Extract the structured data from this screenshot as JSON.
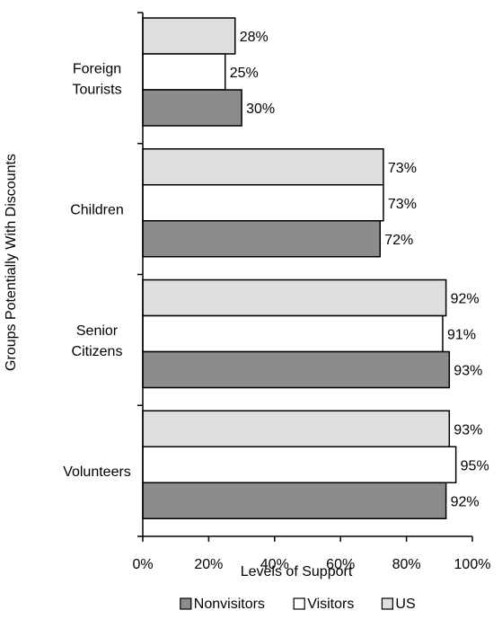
{
  "chart_data": {
    "type": "bar",
    "orientation": "horizontal",
    "title": "",
    "xlabel": "Levels of Support",
    "ylabel": "Groups Potentially With Discounts",
    "xlim": [
      0,
      100
    ],
    "x_ticks": [
      "0%",
      "20%",
      "40%",
      "60%",
      "80%",
      "100%"
    ],
    "x_tick_values": [
      0,
      20,
      40,
      60,
      80,
      100
    ],
    "categories": [
      [
        "Foreign",
        "Tourists"
      ],
      [
        "Children"
      ],
      [
        "Senior",
        "Citizens"
      ],
      [
        "Volunteers"
      ]
    ],
    "series": [
      {
        "name": "US",
        "color": "#dedede",
        "values": [
          28,
          73,
          92,
          93
        ],
        "labels": [
          "28%",
          "73%",
          "92%",
          "93%"
        ]
      },
      {
        "name": "Visitors",
        "color": "#ffffff",
        "values": [
          25,
          73,
          91,
          95
        ],
        "labels": [
          "25%",
          "73%",
          "91%",
          "95%"
        ]
      },
      {
        "name": "Nonvisitors",
        "color": "#8c8c8c",
        "values": [
          30,
          72,
          93,
          92
        ],
        "labels": [
          "30%",
          "72%",
          "93%",
          "92%"
        ]
      }
    ],
    "legend": {
      "position": "bottom",
      "order": [
        "Nonvisitors",
        "Visitors",
        "US"
      ]
    },
    "grid": false
  }
}
